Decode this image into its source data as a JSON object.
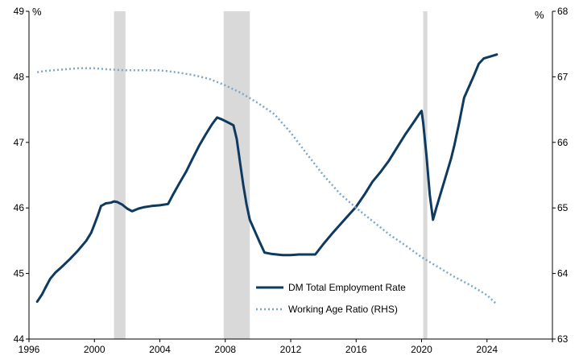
{
  "chart_data": {
    "type": "line",
    "title": "",
    "xlabel": "",
    "ylabel_left_unit": "%",
    "ylabel_right_unit": "%",
    "x_ticks": [
      "1996",
      "2000",
      "2004",
      "2008",
      "2012",
      "2016",
      "2020",
      "2024"
    ],
    "xlim": [
      1996,
      2028
    ],
    "ylim_left": [
      44,
      49
    ],
    "ylim_right": [
      63,
      68
    ],
    "left_ticks": [
      "44",
      "45",
      "46",
      "47",
      "48",
      "49"
    ],
    "right_ticks": [
      "63",
      "64",
      "65",
      "66",
      "67",
      "68"
    ],
    "recessions": [
      [
        2001.2,
        2001.9
      ],
      [
        2007.9,
        2009.5
      ],
      [
        2020.1,
        2020.35
      ]
    ],
    "recession_color": "#d9d9d9",
    "legend_position": "lower-center",
    "series": [
      {
        "name": "DM Total Employment Rate",
        "axis": "left",
        "style": "solid",
        "color": "#0f3a5f",
        "points": [
          [
            1996.5,
            44.57
          ],
          [
            1996.8,
            44.68
          ],
          [
            1997.0,
            44.78
          ],
          [
            1997.3,
            44.92
          ],
          [
            1997.6,
            45.01
          ],
          [
            1998.0,
            45.1
          ],
          [
            1998.5,
            45.22
          ],
          [
            1999.0,
            45.35
          ],
          [
            1999.5,
            45.5
          ],
          [
            1999.8,
            45.62
          ],
          [
            2000.0,
            45.75
          ],
          [
            2000.2,
            45.88
          ],
          [
            2000.4,
            46.03
          ],
          [
            2000.7,
            46.07
          ],
          [
            2001.0,
            46.08
          ],
          [
            2001.2,
            46.1
          ],
          [
            2001.4,
            46.09
          ],
          [
            2001.7,
            46.05
          ],
          [
            2002.0,
            45.99
          ],
          [
            2002.3,
            45.95
          ],
          [
            2002.7,
            45.99
          ],
          [
            2003.0,
            46.01
          ],
          [
            2003.5,
            46.03
          ],
          [
            2004.0,
            46.04
          ],
          [
            2004.5,
            46.06
          ],
          [
            2004.8,
            46.2
          ],
          [
            2005.2,
            46.38
          ],
          [
            2005.6,
            46.55
          ],
          [
            2006.0,
            46.75
          ],
          [
            2006.4,
            46.95
          ],
          [
            2006.8,
            47.12
          ],
          [
            2007.0,
            47.2
          ],
          [
            2007.2,
            47.28
          ],
          [
            2007.5,
            47.38
          ],
          [
            2007.8,
            47.35
          ],
          [
            2008.2,
            47.3
          ],
          [
            2008.5,
            47.26
          ],
          [
            2008.7,
            47.05
          ],
          [
            2008.9,
            46.7
          ],
          [
            2009.1,
            46.35
          ],
          [
            2009.3,
            46.05
          ],
          [
            2009.5,
            45.82
          ],
          [
            2009.8,
            45.65
          ],
          [
            2010.1,
            45.48
          ],
          [
            2010.4,
            45.32
          ],
          [
            2010.8,
            45.3
          ],
          [
            2011.5,
            45.28
          ],
          [
            2012.0,
            45.28
          ],
          [
            2012.5,
            45.29
          ],
          [
            2013.0,
            45.29
          ],
          [
            2013.5,
            45.29
          ],
          [
            2014.0,
            45.45
          ],
          [
            2014.5,
            45.6
          ],
          [
            2015.0,
            45.74
          ],
          [
            2015.5,
            45.88
          ],
          [
            2016.0,
            46.02
          ],
          [
            2016.5,
            46.2
          ],
          [
            2017.0,
            46.4
          ],
          [
            2017.5,
            46.55
          ],
          [
            2018.0,
            46.72
          ],
          [
            2018.5,
            46.92
          ],
          [
            2019.0,
            47.12
          ],
          [
            2019.5,
            47.3
          ],
          [
            2019.9,
            47.45
          ],
          [
            2020.0,
            47.48
          ],
          [
            2020.1,
            47.3
          ],
          [
            2020.3,
            46.8
          ],
          [
            2020.5,
            46.2
          ],
          [
            2020.7,
            45.82
          ],
          [
            2020.9,
            46.0
          ],
          [
            2021.2,
            46.25
          ],
          [
            2021.5,
            46.5
          ],
          [
            2021.8,
            46.75
          ],
          [
            2022.0,
            46.95
          ],
          [
            2022.3,
            47.3
          ],
          [
            2022.6,
            47.68
          ],
          [
            2022.9,
            47.85
          ],
          [
            2023.2,
            48.02
          ],
          [
            2023.5,
            48.2
          ],
          [
            2023.8,
            48.28
          ],
          [
            2024.2,
            48.31
          ],
          [
            2024.6,
            48.34
          ]
        ]
      },
      {
        "name": "Working Age Ratio (RHS)",
        "axis": "right",
        "style": "dotted",
        "color": "#7ea6c8",
        "points": [
          [
            1996.5,
            67.07
          ],
          [
            1997.0,
            67.09
          ],
          [
            1998.0,
            67.11
          ],
          [
            1999.0,
            67.13
          ],
          [
            2000.0,
            67.13
          ],
          [
            2001.0,
            67.11
          ],
          [
            2002.0,
            67.1
          ],
          [
            2003.0,
            67.1
          ],
          [
            2004.0,
            67.1
          ],
          [
            2005.0,
            67.07
          ],
          [
            2006.0,
            67.03
          ],
          [
            2007.0,
            66.97
          ],
          [
            2008.0,
            66.87
          ],
          [
            2009.0,
            66.75
          ],
          [
            2010.0,
            66.6
          ],
          [
            2011.0,
            66.43
          ],
          [
            2012.0,
            66.15
          ],
          [
            2013.0,
            65.82
          ],
          [
            2014.0,
            65.5
          ],
          [
            2015.0,
            65.22
          ],
          [
            2016.0,
            65.0
          ],
          [
            2017.0,
            64.8
          ],
          [
            2018.0,
            64.6
          ],
          [
            2019.0,
            64.43
          ],
          [
            2020.0,
            64.25
          ],
          [
            2021.0,
            64.1
          ],
          [
            2022.0,
            63.95
          ],
          [
            2023.0,
            63.82
          ],
          [
            2024.0,
            63.67
          ],
          [
            2024.6,
            63.53
          ]
        ]
      }
    ]
  }
}
